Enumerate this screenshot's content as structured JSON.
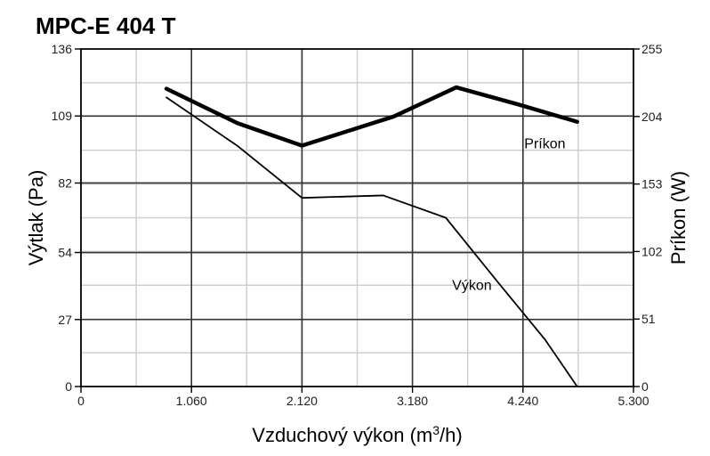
{
  "chart_data": {
    "type": "line",
    "title": "MPC-E 404 T",
    "xlabel": "Vzduchový výkon (m",
    "xlabel_sup": "3",
    "xlabel_tail": "/h)",
    "ylabel_left": "Výtlak (Pa)",
    "ylabel_right": "Príkon (W)",
    "xlim": [
      0,
      5300
    ],
    "ylim_left": [
      0,
      136
    ],
    "ylim_right": [
      0,
      255
    ],
    "x_ticks": [
      0,
      1060,
      2120,
      3180,
      4240,
      5300
    ],
    "x_tick_labels": [
      "0",
      "1.060",
      "2.120",
      "3.180",
      "4.240",
      "5.300"
    ],
    "y_left_ticks": [
      0,
      27,
      54,
      82,
      109,
      136
    ],
    "y_left_tick_labels": [
      "0",
      "27",
      "54",
      "82",
      "109",
      "136"
    ],
    "y_right_ticks": [
      0,
      51,
      102,
      153,
      204,
      255
    ],
    "y_right_tick_labels": [
      "0",
      "51",
      "102",
      "153",
      "204",
      "255"
    ],
    "x_minor_step": 530,
    "y_minor_divisions": 10,
    "grid": true,
    "series": [
      {
        "name": "Výkon",
        "axis": "left",
        "line": "thin",
        "x": [
          820,
          1500,
          2120,
          2900,
          3500,
          4000,
          4450,
          4760
        ],
        "y": [
          116.5,
          97,
          76,
          77,
          68,
          42,
          19,
          0
        ]
      },
      {
        "name": "Príkon",
        "axis": "right",
        "line": "thick",
        "x": [
          820,
          1500,
          2120,
          3000,
          3600,
          4200,
          4760
        ],
        "y": [
          225,
          199,
          182,
          204,
          226,
          213,
          200
        ]
      }
    ]
  }
}
